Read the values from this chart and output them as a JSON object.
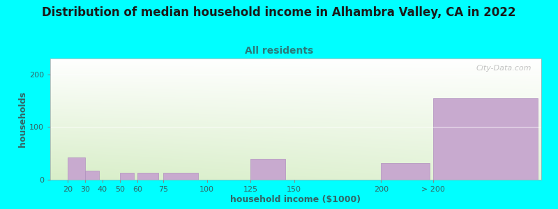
{
  "title": "Distribution of median household income in Alhambra Valley, CA in 2022",
  "subtitle": "All residents",
  "xlabel": "household income ($1000)",
  "ylabel": "households",
  "background_color": "#00FFFF",
  "plot_bg_top": "#FFFFFF",
  "plot_bg_bottom": "#D8EEC8",
  "bar_color": "#C8AACF",
  "bar_edge_color": "#B090BE",
  "watermark": "City-Data.com",
  "ylim": [
    0,
    230
  ],
  "yticks": [
    0,
    100,
    200
  ],
  "categories": [
    "20",
    "30",
    "40",
    "50",
    "60",
    "75",
    "100",
    "125",
    "150",
    "200",
    "> 200"
  ],
  "values": [
    42,
    17,
    0,
    13,
    13,
    13,
    0,
    40,
    0,
    32,
    155
  ],
  "x_numeric": [
    20,
    30,
    40,
    50,
    60,
    75,
    100,
    125,
    150,
    200,
    230
  ],
  "bar_widths_num": [
    10,
    8,
    8,
    8,
    12,
    20,
    20,
    20,
    40,
    28,
    60
  ],
  "xlim": [
    10,
    292
  ],
  "title_fontsize": 12,
  "subtitle_fontsize": 10,
  "axis_label_fontsize": 9,
  "tick_fontsize": 8
}
